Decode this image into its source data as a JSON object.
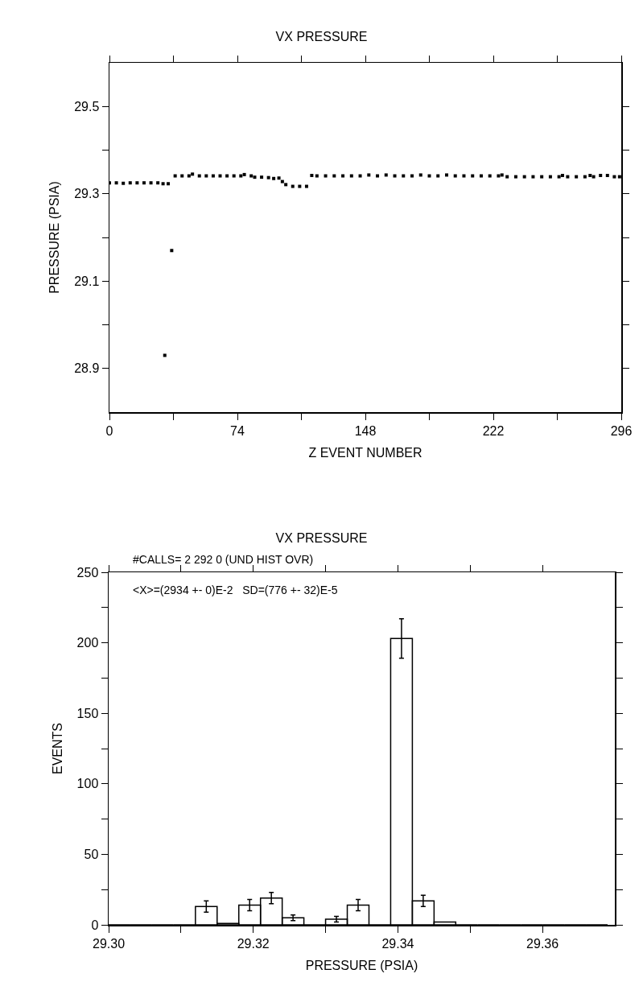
{
  "chart_data": [
    {
      "type": "scatter",
      "title": "VX PRESSURE",
      "xlabel": "Z EVENT NUMBER",
      "ylabel": "PRESSURE (PSIA)",
      "marker": "square",
      "color": "#000000",
      "x": [
        0,
        4,
        8,
        12,
        16,
        20,
        24,
        28,
        31,
        32,
        34,
        36,
        38,
        42,
        46,
        48,
        52,
        56,
        60,
        64,
        68,
        72,
        76,
        78,
        82,
        84,
        88,
        92,
        95,
        98,
        100,
        102,
        106,
        110,
        114,
        117,
        120,
        125,
        130,
        135,
        140,
        145,
        150,
        155,
        160,
        165,
        170,
        175,
        180,
        185,
        190,
        195,
        200,
        205,
        210,
        215,
        220,
        225,
        227,
        230,
        235,
        240,
        245,
        250,
        255,
        260,
        262,
        265,
        270,
        275,
        278,
        280,
        284,
        288,
        292,
        295
      ],
      "values": [
        29.325,
        29.325,
        29.324,
        29.325,
        29.325,
        29.325,
        29.325,
        29.325,
        29.323,
        28.93,
        29.323,
        29.17,
        29.341,
        29.341,
        29.341,
        29.345,
        29.341,
        29.341,
        29.341,
        29.341,
        29.341,
        29.341,
        29.341,
        29.344,
        29.341,
        29.338,
        29.338,
        29.337,
        29.335,
        29.336,
        29.328,
        29.321,
        29.317,
        29.317,
        29.317,
        29.342,
        29.341,
        29.341,
        29.341,
        29.341,
        29.341,
        29.341,
        29.343,
        29.341,
        29.343,
        29.341,
        29.341,
        29.341,
        29.343,
        29.341,
        29.341,
        29.343,
        29.341,
        29.341,
        29.341,
        29.341,
        29.341,
        29.341,
        29.343,
        29.339,
        29.339,
        29.339,
        29.339,
        29.339,
        29.339,
        29.339,
        29.342,
        29.339,
        29.339,
        29.339,
        29.342,
        29.339,
        29.342,
        29.342,
        29.339,
        29.339
      ],
      "xlim": [
        0,
        296
      ],
      "xticks": [
        0,
        {
          "value": 37,
          "label": null
        },
        74,
        {
          "value": 111,
          "label": null
        },
        148,
        {
          "value": 185,
          "label": null
        },
        222,
        {
          "value": 259,
          "label": null
        },
        296
      ],
      "ylim": [
        28.8,
        29.6
      ],
      "yticks": [
        {
          "value": 28.9,
          "label": "28.9"
        },
        {
          "value": 29.0,
          "label": null
        },
        {
          "value": 29.1,
          "label": "29.1"
        },
        {
          "value": 29.2,
          "label": null
        },
        {
          "value": 29.3,
          "label": "29.3"
        },
        {
          "value": 29.4,
          "label": null
        },
        {
          "value": 29.5,
          "label": "29.5"
        }
      ]
    },
    {
      "type": "histogram",
      "title": "VX PRESSURE",
      "xlabel": "PRESSURE (PSIA)",
      "ylabel": "EVENTS",
      "color": "#000000",
      "annotations": [
        "#CALLS= 2 292 0 (UND HIST OVR)",
        "<X>=(2934 +- 0)E-2   SD=(776 +- 32)E-5"
      ],
      "bins": [
        29.3,
        29.303,
        29.306,
        29.309,
        29.312,
        29.315,
        29.318,
        29.321,
        29.324,
        29.327,
        29.33,
        29.333,
        29.336,
        29.339,
        29.342,
        29.345,
        29.348,
        29.351,
        29.354,
        29.357,
        29.36,
        29.363,
        29.366,
        29.369
      ],
      "values": [
        0,
        0,
        0,
        0,
        13,
        1,
        14,
        19,
        5,
        0,
        4,
        14,
        0,
        203,
        17,
        2,
        0,
        0,
        0,
        0,
        0,
        0,
        0
      ],
      "errors": [
        null,
        null,
        null,
        null,
        4,
        null,
        4,
        4,
        2,
        null,
        2,
        4,
        null,
        14,
        4,
        null,
        null,
        null,
        null,
        null,
        null,
        null,
        null
      ],
      "xlim": [
        29.3,
        29.37
      ],
      "xticks": [
        {
          "value": 29.3,
          "label": "29.30"
        },
        {
          "value": 29.31,
          "label": null
        },
        {
          "value": 29.32,
          "label": "29.32"
        },
        {
          "value": 29.33,
          "label": null
        },
        {
          "value": 29.34,
          "label": "29.34"
        },
        {
          "value": 29.35,
          "label": null
        },
        {
          "value": 29.36,
          "label": "29.36"
        }
      ],
      "ylim": [
        0,
        250
      ],
      "yticks": [
        0,
        {
          "value": 25,
          "label": null
        },
        50,
        {
          "value": 75,
          "label": null
        },
        100,
        {
          "value": 125,
          "label": null
        },
        150,
        {
          "value": 175,
          "label": null
        },
        200,
        {
          "value": 225,
          "label": null
        },
        250
      ]
    }
  ]
}
